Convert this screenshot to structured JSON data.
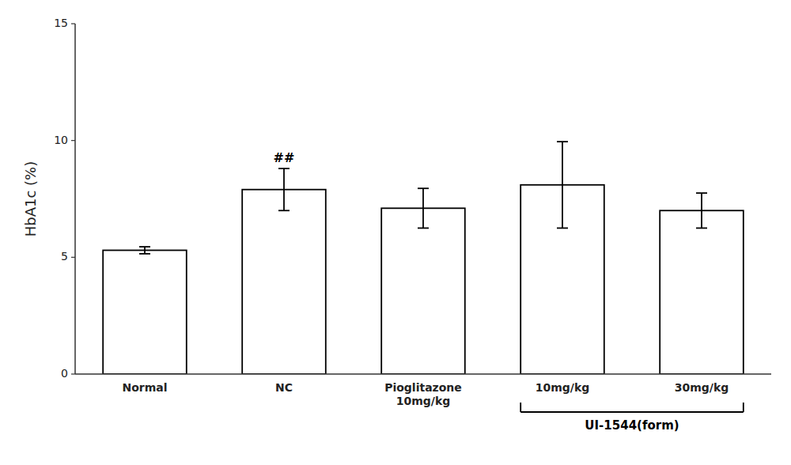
{
  "chart_data": {
    "type": "bar",
    "ylabel": "HbA1c (%)",
    "categories": [
      "Normal",
      "NC",
      "Pioglitazone\n10mg/kg",
      "10mg/kg",
      "30mg/kg"
    ],
    "values": [
      5.3,
      7.9,
      7.1,
      8.1,
      7.0
    ],
    "errors": [
      0.15,
      0.9,
      0.85,
      1.85,
      0.75
    ],
    "color": "#ffffff",
    "ylim": [
      0,
      15
    ],
    "yticks": [
      0,
      5,
      10,
      15
    ],
    "grid": false,
    "annotations": [
      {
        "text": "##",
        "index": 1
      }
    ],
    "group_labels": [
      {
        "text": "UI-1544(form)",
        "from": 3,
        "to": 4
      }
    ]
  }
}
